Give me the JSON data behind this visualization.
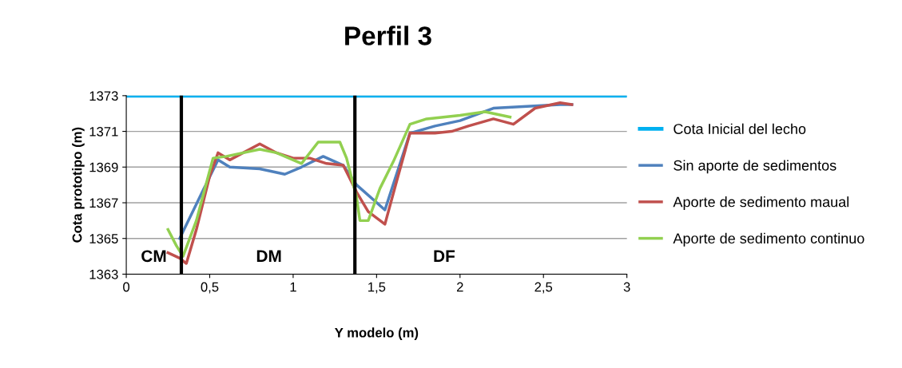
{
  "chart_data": {
    "type": "line",
    "title": "Perfil 3",
    "xlabel": "Y modelo (m)",
    "ylabel": "Cota prototipo (m)",
    "xlim": [
      0,
      3
    ],
    "xticks": [
      0,
      {
        "value": 0.5,
        "label": "0,5"
      },
      1,
      {
        "value": 1.5,
        "label": "1,5"
      },
      2,
      {
        "value": 2.5,
        "label": "2,5"
      },
      3
    ],
    "ylim": [
      1363,
      1373
    ],
    "yticks": [
      1363,
      1365,
      1367,
      1369,
      1371,
      1373
    ],
    "grid": "y",
    "legend": "right",
    "marker": "none",
    "line_style": "solid",
    "series": [
      {
        "name": "Cota Inicial del lecho",
        "color": "#00b0f0",
        "x": [
          0,
          3
        ],
        "values": [
          1373,
          1373
        ]
      },
      {
        "name": "Sin aporte de sedimentos",
        "color": "#4f81bd",
        "x": [
          0.32,
          0.45,
          0.55,
          0.62,
          0.8,
          0.95,
          1.05,
          1.18,
          1.3,
          1.38,
          1.55,
          1.7,
          1.85,
          2.0,
          2.2,
          2.4,
          2.6,
          2.67
        ],
        "values": [
          1365.0,
          1367.5,
          1369.4,
          1369.0,
          1368.9,
          1368.6,
          1369.0,
          1369.6,
          1369.1,
          1368.0,
          1366.6,
          1370.9,
          1371.3,
          1371.6,
          1372.3,
          1372.4,
          1372.5,
          1372.5
        ]
      },
      {
        "name": "Aporte de sedimento maual",
        "color": "#c0504d",
        "x": [
          0.25,
          0.32,
          0.36,
          0.42,
          0.5,
          0.55,
          0.62,
          0.8,
          0.9,
          1.0,
          1.1,
          1.2,
          1.3,
          1.38,
          1.45,
          1.55,
          1.62,
          1.7,
          1.85,
          1.95,
          2.05,
          2.2,
          2.32,
          2.45,
          2.6,
          2.67
        ],
        "values": [
          1364.2,
          1363.9,
          1363.6,
          1365.5,
          1368.5,
          1369.8,
          1369.4,
          1370.3,
          1369.8,
          1369.5,
          1369.5,
          1369.2,
          1369.1,
          1367.6,
          1366.5,
          1365.8,
          1368.2,
          1370.9,
          1370.9,
          1371.0,
          1371.3,
          1371.7,
          1371.4,
          1372.3,
          1372.6,
          1372.5
        ]
      },
      {
        "name": "Aporte de sedimento continuo",
        "color": "#92d050",
        "x": [
          0.25,
          0.3,
          0.34,
          0.42,
          0.52,
          0.6,
          0.8,
          0.9,
          1.05,
          1.15,
          1.28,
          1.32,
          1.38,
          1.4,
          1.45,
          1.52,
          1.6,
          1.7,
          1.8,
          2.0,
          2.15,
          2.3
        ],
        "values": [
          1365.5,
          1364.6,
          1364.0,
          1366.0,
          1369.5,
          1369.6,
          1370.0,
          1369.8,
          1369.2,
          1370.4,
          1370.4,
          1369.5,
          1367.3,
          1366.0,
          1366.0,
          1367.8,
          1369.3,
          1371.4,
          1371.7,
          1371.9,
          1372.1,
          1371.8
        ]
      }
    ],
    "ref_lines": [
      {
        "axis": "x",
        "value": 0.33,
        "color": "#000000"
      },
      {
        "axis": "x",
        "value": 1.37,
        "color": "#000000"
      }
    ],
    "annotations": [
      "CM",
      "DM",
      "DF"
    ]
  }
}
